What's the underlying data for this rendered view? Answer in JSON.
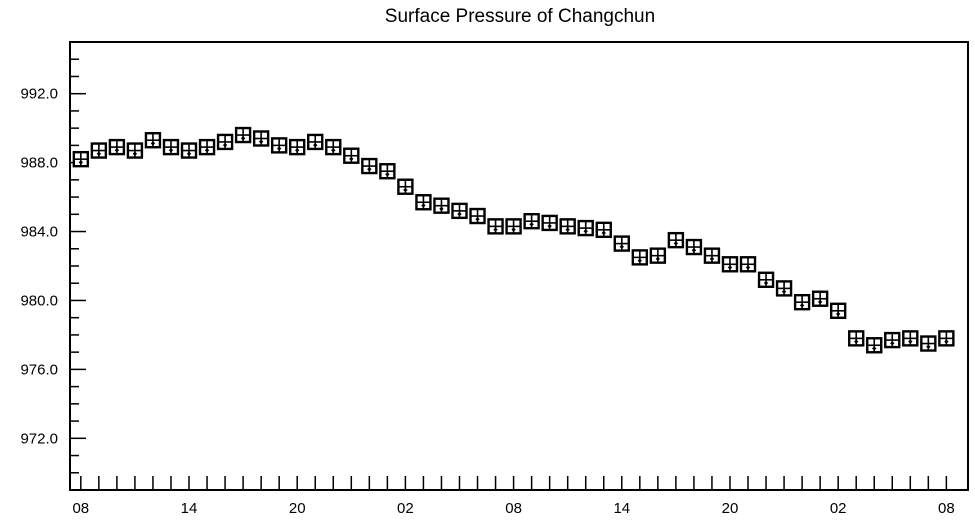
{
  "chart_data": {
    "type": "scatter",
    "title": "Surface Pressure of Changchun",
    "xlabel": "",
    "ylabel": "",
    "ylim": [
      969.0,
      995.0
    ],
    "y_ticks": [
      972.0,
      976.0,
      980.0,
      984.0,
      988.0,
      992.0
    ],
    "y_tick_labels": [
      "972.0",
      "976.0",
      "980.0",
      "984.0",
      "988.0",
      "992.0"
    ],
    "x_hours_from_first": [
      0,
      6,
      12,
      18,
      24,
      30,
      36,
      42,
      48
    ],
    "x_tick_labels": [
      "08",
      "14",
      "20",
      "02",
      "08",
      "14",
      "20",
      "02",
      "08"
    ],
    "x_range_hours": [
      -0.6,
      49.2
    ],
    "grid": false,
    "marker": "boxed-cross",
    "series": [
      {
        "x": [
          0,
          1,
          2,
          3,
          4,
          5,
          6,
          7,
          8,
          9,
          10,
          11,
          12,
          13,
          14,
          15,
          16,
          17,
          18,
          19,
          20,
          21,
          22,
          23,
          24,
          25,
          26,
          27,
          28,
          29,
          30,
          31,
          32,
          33,
          34,
          35,
          36,
          37,
          38,
          39,
          40,
          41,
          42,
          43,
          44,
          45,
          46,
          47,
          48
        ],
        "values": [
          988.2,
          988.7,
          988.9,
          988.7,
          989.3,
          988.9,
          988.7,
          988.9,
          989.2,
          989.6,
          989.4,
          989.0,
          988.9,
          989.2,
          988.9,
          988.4,
          987.8,
          987.5,
          986.6,
          985.7,
          985.5,
          985.2,
          984.9,
          984.3,
          984.3,
          984.6,
          984.5,
          984.3,
          984.2,
          984.1,
          983.3,
          982.5,
          982.6,
          983.5,
          983.1,
          982.6,
          982.1,
          982.1,
          981.2,
          980.7,
          979.9,
          980.1,
          979.4,
          977.8,
          977.4,
          977.7,
          977.8,
          977.5,
          977.8
        ]
      }
    ]
  }
}
